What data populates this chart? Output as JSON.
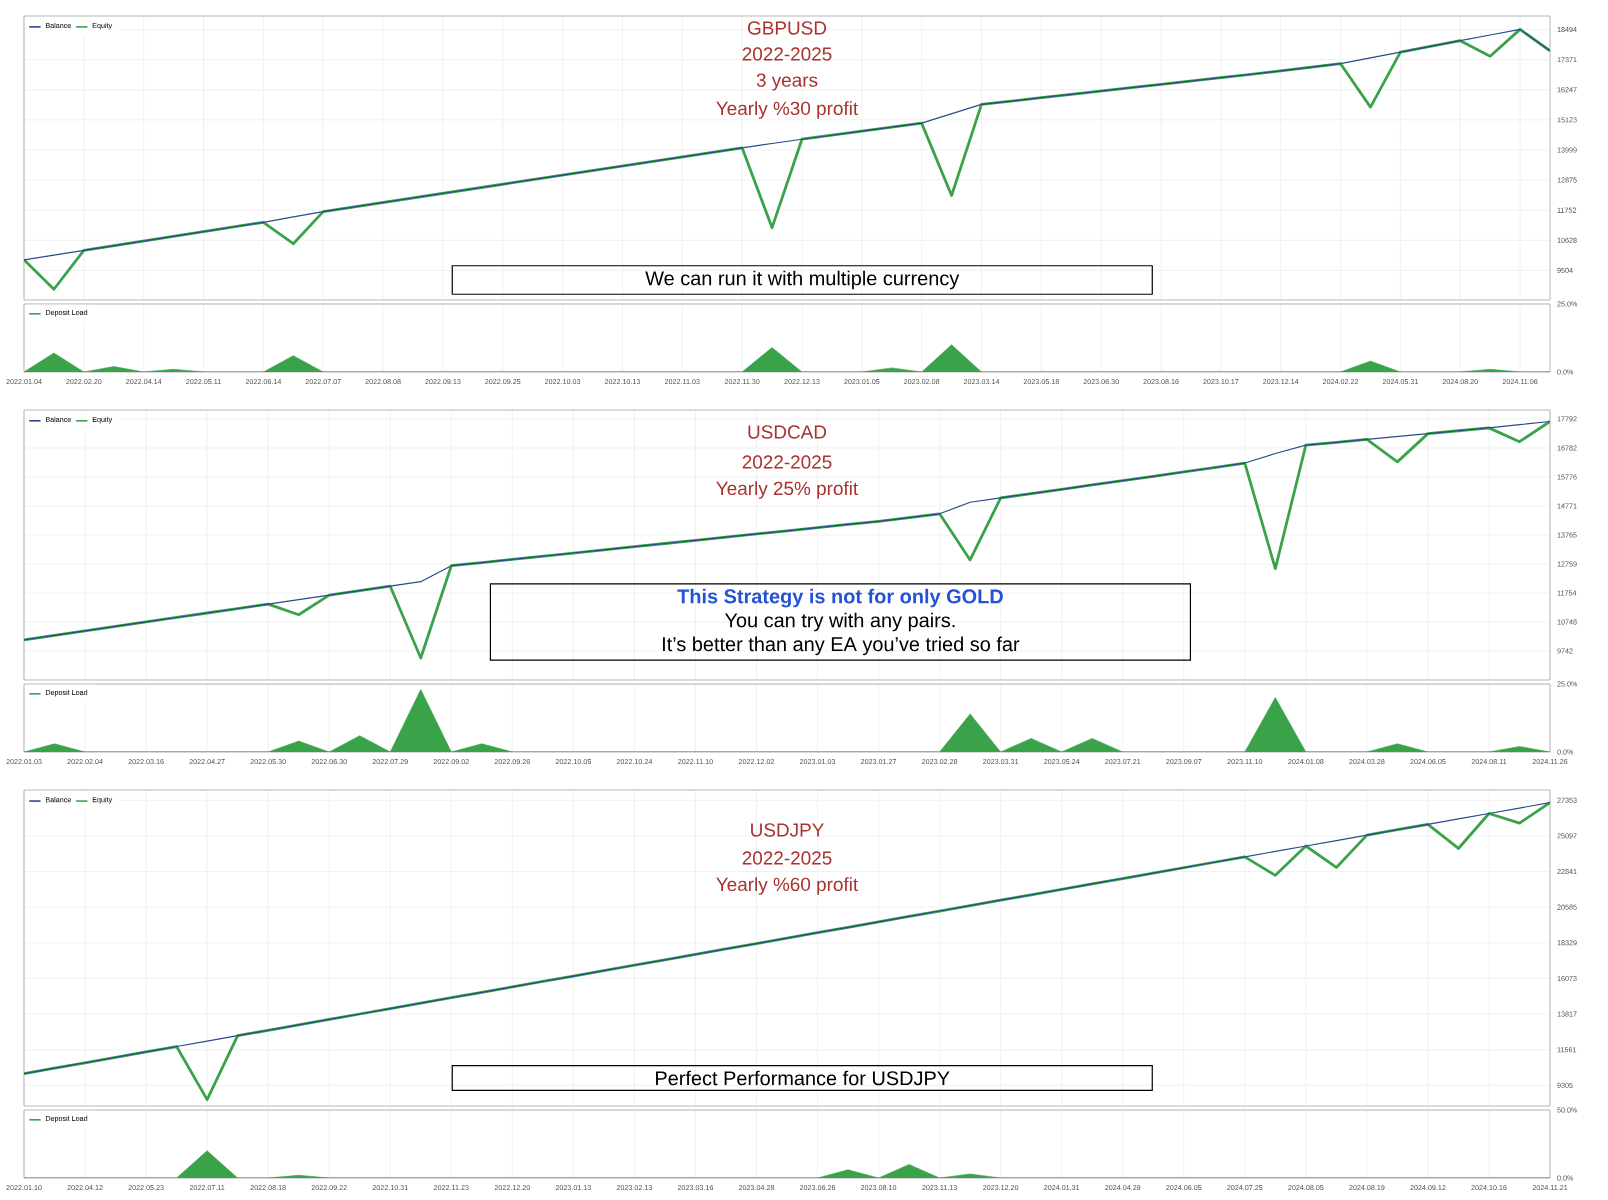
{
  "chart_data": [
    {
      "type": "line",
      "title": "GBPUSD",
      "subtitle": "2022-2025",
      "annotations": [
        "3 years",
        "Yearly %30 profit",
        "We can run it with multiple currency"
      ],
      "categories": [
        "2022.01.04",
        null,
        "2022.02.20",
        null,
        "2022.04.14",
        null,
        "2022.05.11",
        null,
        "2022.06.14",
        null,
        "2022.07.07",
        null,
        "2022.08.08",
        null,
        "2022.09.13",
        null,
        "2022.09.25",
        null,
        "2022.10.03",
        null,
        "2022.10.13",
        null,
        "2022.11.03",
        null,
        "2022.11.30",
        null,
        "2022.12.13",
        null,
        "2023.01.05",
        null,
        "2023.02.08",
        null,
        "2023.03.14",
        null,
        "2023.05.18",
        null,
        "2023.06.30",
        null,
        "2023.08.16",
        null,
        "2023.10.17",
        null,
        "2023.12.14",
        null,
        "2024.02.22",
        null,
        "2024.05.31",
        null,
        "2024.08.20",
        null,
        "2024.11.06",
        null
      ],
      "series": [
        {
          "name": "Balance",
          "color": "#2b4a8c",
          "values": [
            9900,
            10075,
            10250,
            10425,
            10600,
            10775,
            10950,
            11125,
            11300,
            11500,
            11700,
            11870,
            12040,
            12210,
            12380,
            12550,
            12720,
            12890,
            13060,
            13230,
            13400,
            13570,
            13740,
            13910,
            14080,
            14240,
            14400,
            14550,
            14700,
            14850,
            15000,
            15350,
            15700,
            15825,
            15950,
            16075,
            16200,
            16325,
            16450,
            16575,
            16700,
            16825,
            16950,
            17085,
            17220,
            17435,
            17650,
            17865,
            18080,
            18290,
            18500,
            17700
          ]
        },
        {
          "name": "Equity",
          "color": "#3aa34a",
          "values": [
            9900,
            8800,
            10250,
            10425,
            10600,
            10775,
            10950,
            11125,
            11300,
            10500,
            11700,
            11870,
            12040,
            12210,
            12380,
            12550,
            12720,
            12890,
            13060,
            13230,
            13400,
            13570,
            13740,
            13910,
            14080,
            11100,
            14400,
            14550,
            14700,
            14850,
            15000,
            12300,
            15700,
            15825,
            15950,
            16075,
            16200,
            16325,
            16450,
            16575,
            16700,
            16825,
            16950,
            17085,
            17220,
            15600,
            17650,
            17865,
            18080,
            17500,
            18500,
            17700
          ]
        }
      ],
      "ylim": [
        8400,
        19000
      ],
      "yticks": [
        9504,
        10628,
        11752,
        12875,
        13999,
        15123,
        16247,
        17371,
        18494
      ],
      "grid": true,
      "legend": "top left",
      "tick_labels": "y"
    },
    {
      "type": "area",
      "categories": [
        "2022.01.04",
        null,
        "2022.02.20",
        null,
        "2022.04.14",
        null,
        "2022.05.11",
        null,
        "2022.06.14",
        null,
        "2022.07.07",
        null,
        "2022.08.08",
        null,
        "2022.09.13",
        null,
        "2022.09.25",
        null,
        "2022.10.03",
        null,
        "2022.10.13",
        null,
        "2022.11.03",
        null,
        "2022.11.30",
        null,
        "2022.12.13",
        null,
        "2023.01.05",
        null,
        "2023.02.08",
        null,
        "2023.03.14",
        null,
        "2023.05.18",
        null,
        "2023.06.30",
        null,
        "2023.08.16",
        null,
        "2023.10.17",
        null,
        "2023.12.14",
        null,
        "2024.02.22",
        null,
        "2024.05.31",
        null,
        "2024.08.20",
        null,
        "2024.11.06",
        null
      ],
      "series": [
        {
          "name": "Deposit Load",
          "color": "#3aa34a",
          "values": [
            0,
            7,
            0,
            2,
            0,
            1,
            0,
            0,
            0,
            6,
            0,
            0,
            0,
            0,
            0,
            0,
            0,
            0,
            0,
            0,
            0,
            0,
            0,
            0,
            0,
            9,
            0,
            0,
            0,
            1.5,
            0,
            10,
            0,
            0,
            0,
            0,
            0,
            0,
            0,
            0,
            0,
            0,
            0,
            0,
            0,
            4,
            0,
            0,
            0,
            1,
            0,
            0
          ]
        }
      ],
      "ylim": [
        0,
        25
      ],
      "yticks": [
        {
          "value": 0,
          "label": "0.0%"
        },
        {
          "value": 25,
          "label": "25.0%"
        }
      ],
      "grid": true,
      "legend": "top left"
    },
    {
      "type": "line",
      "title": "USDCAD",
      "subtitle": "2022-2025",
      "annotations": [
        "Yearly 25% profit",
        "This Strategy is not for only GOLD",
        "You can try with any pairs.",
        "It’s better than any EA you’ve tried so far"
      ],
      "categories": [
        "2022.01.03",
        null,
        "2022.02.04",
        null,
        "2022.03.16",
        null,
        "2022.04.27",
        null,
        "2022.05.30",
        null,
        "2022.06.30",
        null,
        "2022.07.29",
        null,
        "2022.09.02",
        null,
        "2022.09.26",
        null,
        "2022.10.05",
        null,
        "2022.10.24",
        null,
        "2022.11.10",
        null,
        "2022.12.02",
        null,
        "2023.01.03",
        null,
        "2023.01.27",
        null,
        "2023.02.28",
        null,
        "2023.03.31",
        null,
        "2023.05.24",
        null,
        "2023.07.21",
        null,
        "2023.09.07",
        null,
        "2023.11.10",
        null,
        "2024.01.08",
        null,
        "2024.03.28",
        null,
        "2024.06.05",
        null,
        "2024.08.11",
        null,
        "2024.11.26"
      ],
      "series": [
        {
          "name": "Balance",
          "color": "#2b4a8c",
          "values": [
            10130,
            10285,
            10440,
            10595,
            10750,
            10905,
            11060,
            11215,
            11370,
            11525,
            11680,
            11835,
            11990,
            12145,
            12700,
            12810,
            12920,
            13030,
            13140,
            13250,
            13360,
            13470,
            13580,
            13690,
            13800,
            13910,
            14020,
            14130,
            14240,
            14370,
            14500,
            14900,
            15050,
            15200,
            15350,
            15500,
            15650,
            15800,
            15950,
            16105,
            16260,
            16590,
            16880,
            16980,
            17080,
            17180,
            17280,
            17380,
            17480,
            17590,
            17700
          ]
        },
        {
          "name": "Equity",
          "color": "#3aa34a",
          "values": [
            10130,
            10285,
            10440,
            10595,
            10750,
            10905,
            11060,
            11215,
            11370,
            11000,
            11680,
            11835,
            11990,
            9500,
            12700,
            12810,
            12920,
            13030,
            13140,
            13250,
            13360,
            13470,
            13580,
            13690,
            13800,
            13910,
            14020,
            14130,
            14240,
            14370,
            14500,
            12900,
            15050,
            15200,
            15350,
            15500,
            15650,
            15800,
            15950,
            16105,
            16260,
            12600,
            16880,
            16980,
            17080,
            16300,
            17280,
            17380,
            17480,
            17000,
            17700
          ]
        }
      ],
      "ylim": [
        8737,
        18100
      ],
      "yticks": [
        9742,
        10748,
        11754,
        12759,
        13765,
        14771,
        15776,
        16782,
        17792
      ],
      "grid": true,
      "legend": "top left",
      "tick_labels": "y"
    },
    {
      "type": "area",
      "categories": [
        "2022.01.03",
        null,
        "2022.02.04",
        null,
        "2022.03.16",
        null,
        "2022.04.27",
        null,
        "2022.05.30",
        null,
        "2022.06.30",
        null,
        "2022.07.29",
        null,
        "2022.09.02",
        null,
        "2022.09.26",
        null,
        "2022.10.05",
        null,
        "2022.10.24",
        null,
        "2022.11.10",
        null,
        "2022.12.02",
        null,
        "2023.01.03",
        null,
        "2023.01.27",
        null,
        "2023.02.28",
        null,
        "2023.03.31",
        null,
        "2023.05.24",
        null,
        "2023.07.21",
        null,
        "2023.09.07",
        null,
        "2023.11.10",
        null,
        "2024.01.08",
        null,
        "2024.03.28",
        null,
        "2024.06.05",
        null,
        "2024.08.11",
        null,
        "2024.11.26"
      ],
      "series": [
        {
          "name": "Deposit Load",
          "color": "#3aa34a",
          "values": [
            0,
            3,
            0,
            0,
            0,
            0,
            0,
            0,
            0,
            4,
            0,
            6,
            0,
            23,
            0,
            3,
            0,
            0,
            0,
            0,
            0,
            0,
            0,
            0,
            0,
            0,
            0,
            0,
            0,
            0,
            0,
            14,
            0,
            5,
            0,
            5,
            0,
            0,
            0,
            0,
            0,
            20,
            0,
            0,
            0,
            3,
            0,
            0,
            0,
            2,
            0
          ]
        }
      ],
      "ylim": [
        0,
        25
      ],
      "yticks": [
        {
          "value": 0,
          "label": "0.0%"
        },
        {
          "value": 25,
          "label": "25.0%"
        }
      ],
      "grid": true,
      "legend": "top left"
    },
    {
      "type": "line",
      "title": "USDJPY",
      "subtitle": "2022-2025",
      "annotations": [
        "Yearly %60 profit",
        "Perfect Performance for USDJPY"
      ],
      "categories": [
        "2022.01.10",
        null,
        "2022.04.12",
        null,
        "2022.05.23",
        null,
        "2022.07.11",
        null,
        "2022.08.18",
        null,
        "2022.09.22",
        null,
        "2022.10.31",
        null,
        "2022.11.23",
        null,
        "2022.12.20",
        null,
        "2023.01.13",
        null,
        "2023.02.13",
        null,
        "2023.03.16",
        null,
        "2023.04.28",
        null,
        "2023.06.26",
        null,
        "2023.08.10",
        null,
        "2023.11.13",
        null,
        "2023.12.20",
        null,
        "2024.01.31",
        null,
        "2024.04.29",
        null,
        "2024.06.05",
        null,
        "2024.07.25",
        null,
        "2024.08.05",
        null,
        "2024.08.19",
        null,
        "2024.09.12",
        null,
        "2024.10.16",
        null,
        "2024.11.21"
      ],
      "series": [
        {
          "name": "Balance",
          "color": "#2b4a8c",
          "values": [
            10050,
            10393,
            10736,
            11079,
            11422,
            11765,
            12108,
            12451,
            12794,
            13137,
            13480,
            13823,
            14166,
            14509,
            14852,
            15195,
            15538,
            15881,
            16224,
            16567,
            16910,
            17253,
            17596,
            17939,
            18282,
            18625,
            18968,
            19311,
            19654,
            19997,
            20340,
            20683,
            21026,
            21369,
            21712,
            22055,
            22398,
            22741,
            23084,
            23427,
            23770,
            24113,
            24456,
            24799,
            25142,
            25485,
            25828,
            26171,
            26514,
            26857,
            27200
          ]
        },
        {
          "name": "Equity",
          "color": "#3aa34a",
          "values": [
            10050,
            10393,
            10736,
            11079,
            11422,
            11765,
            8400,
            12451,
            12794,
            13137,
            13480,
            13823,
            14166,
            14509,
            14852,
            15195,
            15538,
            15881,
            16224,
            16567,
            16910,
            17253,
            17596,
            17939,
            18282,
            18625,
            18968,
            19311,
            19654,
            19997,
            20340,
            20683,
            21026,
            21369,
            21712,
            22055,
            22398,
            22741,
            23084,
            23427,
            23770,
            22600,
            24456,
            23100,
            25142,
            25485,
            25828,
            24300,
            26514,
            25900,
            27200
          ]
        }
      ],
      "ylim": [
        8000,
        28000
      ],
      "yticks": [
        9305,
        11561,
        13817,
        16073,
        18329,
        20585,
        22841,
        25097,
        27353
      ],
      "grid": true,
      "legend": "top left",
      "tick_labels": "y"
    },
    {
      "type": "area",
      "categories": [
        "2022.01.10",
        null,
        "2022.04.12",
        null,
        "2022.05.23",
        null,
        "2022.07.11",
        null,
        "2022.08.18",
        null,
        "2022.09.22",
        null,
        "2022.10.31",
        null,
        "2022.11.23",
        null,
        "2022.12.20",
        null,
        "2023.01.13",
        null,
        "2023.02.13",
        null,
        "2023.03.16",
        null,
        "2023.04.28",
        null,
        "2023.06.26",
        null,
        "2023.08.10",
        null,
        "2023.11.13",
        null,
        "2023.12.20",
        null,
        "2024.01.31",
        null,
        "2024.04.29",
        null,
        "2024.06.05",
        null,
        "2024.07.25",
        null,
        "2024.08.05",
        null,
        "2024.08.19",
        null,
        "2024.09.12",
        null,
        "2024.10.16",
        null,
        "2024.11.21"
      ],
      "series": [
        {
          "name": "Deposit Load",
          "color": "#3aa34a",
          "values": [
            0,
            0,
            0,
            0,
            0,
            0,
            20,
            0,
            0,
            2,
            0,
            0,
            0,
            0,
            0,
            0,
            0,
            0,
            0,
            0,
            0,
            0,
            0,
            0,
            0,
            0,
            0,
            6,
            0,
            10,
            0,
            3,
            0,
            0,
            0,
            0,
            0,
            0,
            0,
            0,
            0,
            0,
            0,
            0,
            0,
            0,
            0,
            0,
            0,
            0,
            0
          ]
        }
      ],
      "ylim": [
        0,
        50
      ],
      "yticks": [
        {
          "value": 0,
          "label": "0.0%"
        },
        {
          "value": 50,
          "label": "50.0%"
        }
      ],
      "grid": true,
      "legend": "top left"
    }
  ]
}
